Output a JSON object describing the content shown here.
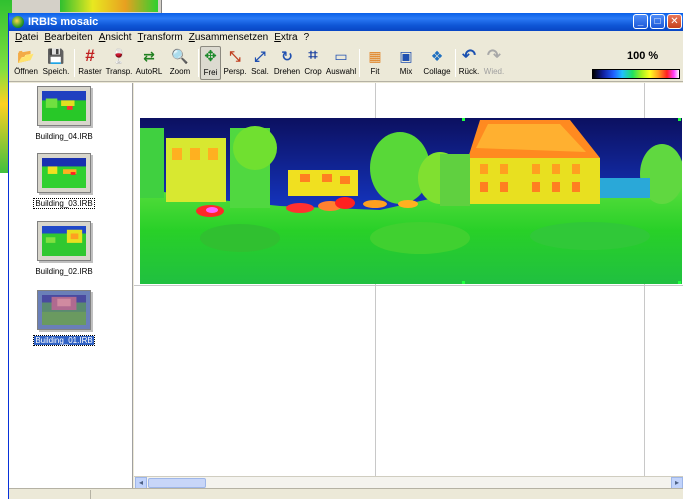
{
  "window": {
    "title": "IRBIS mosaic",
    "minimize": "_",
    "maximize": "□",
    "close": "✕"
  },
  "menu": [
    "Datei",
    "Bearbeiten",
    "Ansicht",
    "Transform",
    "Zusammensetzen",
    "Extra",
    "?"
  ],
  "toolbar": {
    "tools": [
      {
        "id": "open",
        "label": "Öffnen",
        "icon": "open-folder-icon",
        "glyph": "📂"
      },
      {
        "id": "save",
        "label": "Speich.",
        "icon": "save-disk-icon",
        "glyph": "💾"
      },
      {
        "id": "raster",
        "label": "Raster",
        "icon": "grid-icon",
        "glyph": "#"
      },
      {
        "id": "transp",
        "label": "Transp.",
        "icon": "goblet-icon",
        "glyph": "🍷"
      },
      {
        "id": "autorl",
        "label": "AutoRL",
        "icon": "auto-align-icon",
        "glyph": "⇄"
      },
      {
        "id": "zoom",
        "label": "Zoom",
        "icon": "magnifier-icon",
        "glyph": "🔍"
      },
      {
        "id": "frei",
        "label": "Frei",
        "icon": "free-move-icon",
        "glyph": "✥"
      },
      {
        "id": "persp",
        "label": "Persp.",
        "icon": "perspective-icon",
        "glyph": "⤡"
      },
      {
        "id": "scal",
        "label": "Scal.",
        "icon": "scale-icon",
        "glyph": "⤢"
      },
      {
        "id": "drehen",
        "label": "Drehen",
        "icon": "rotate-icon",
        "glyph": "↻"
      },
      {
        "id": "crop",
        "label": "Crop",
        "icon": "crop-icon",
        "glyph": "⌗"
      },
      {
        "id": "auswahl",
        "label": "Auswahl",
        "icon": "selection-icon",
        "glyph": "▭"
      },
      {
        "id": "fit",
        "label": "Fit",
        "icon": "fit-icon",
        "glyph": "▦"
      },
      {
        "id": "mix",
        "label": "Mix",
        "icon": "mix-icon",
        "glyph": "▣"
      },
      {
        "id": "collage",
        "label": "Collage",
        "icon": "collage-icon",
        "glyph": "❖"
      },
      {
        "id": "rueck",
        "label": "Rück.",
        "icon": "undo-icon",
        "glyph": "↶"
      },
      {
        "id": "wied",
        "label": "Wied.",
        "icon": "redo-icon",
        "glyph": "↷"
      }
    ],
    "zoom_level": "100 %"
  },
  "thumbnails": [
    {
      "label": "Building_04.IRB",
      "selected": false
    },
    {
      "label": "Building_03.IRB",
      "selected": false
    },
    {
      "label": "Building_02.IRB",
      "selected": false
    },
    {
      "label": "Building_01.IRB",
      "selected": true
    }
  ],
  "scrollbar": {
    "left_arrow": "◂",
    "right_arrow": "▸"
  },
  "colors": {
    "title_bar": "#0a5fe8",
    "selection": "#3163c5",
    "window_bg": "#ece9d8"
  }
}
